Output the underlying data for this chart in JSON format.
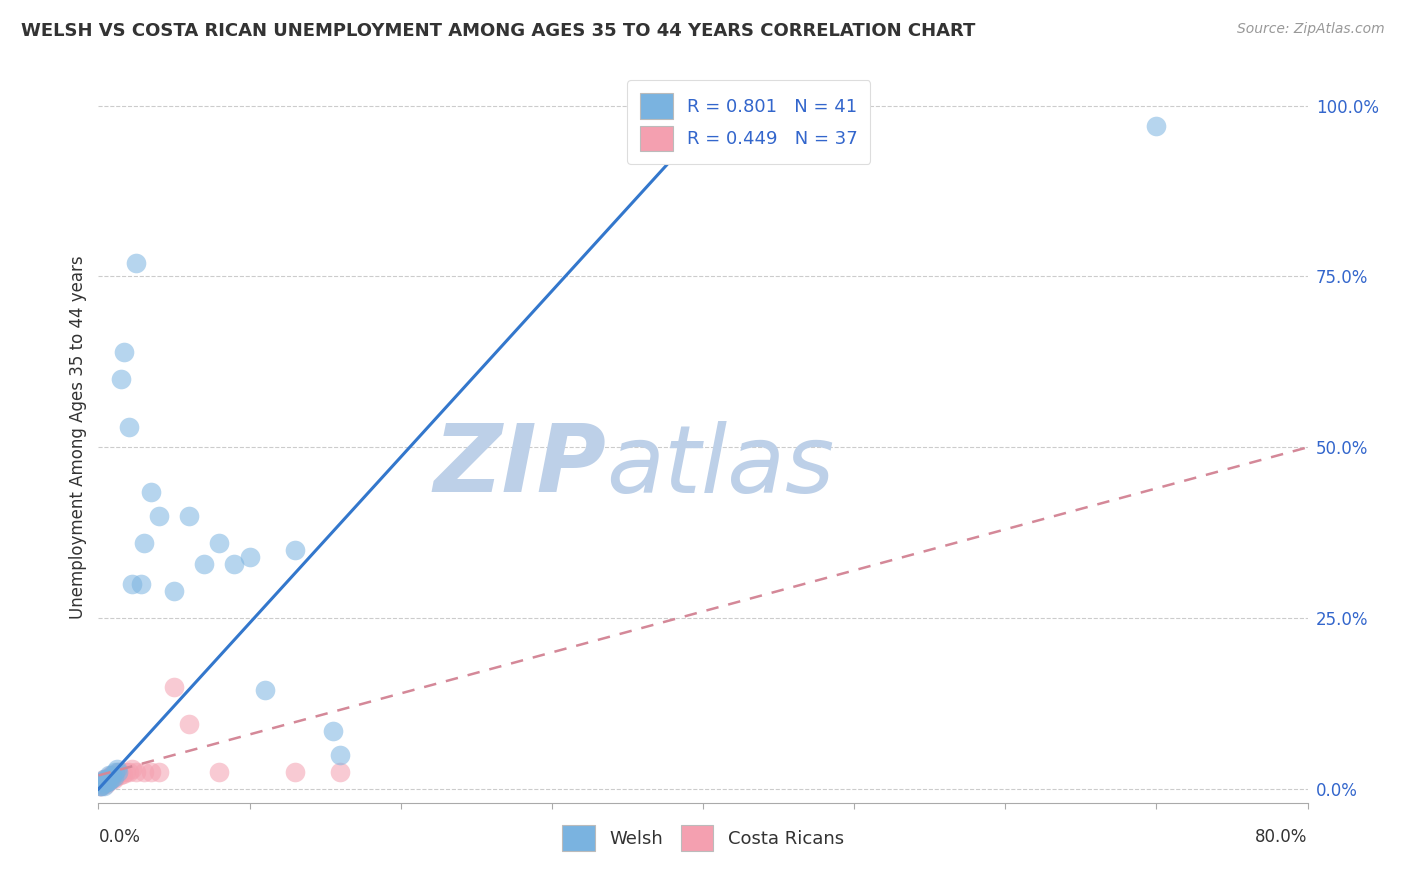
{
  "title": "WELSH VS COSTA RICAN UNEMPLOYMENT AMONG AGES 35 TO 44 YEARS CORRELATION CHART",
  "source": "Source: ZipAtlas.com",
  "ylabel": "Unemployment Among Ages 35 to 44 years",
  "ytick_labels": [
    "0.0%",
    "25.0%",
    "50.0%",
    "75.0%",
    "100.0%"
  ],
  "ytick_values": [
    0,
    0.25,
    0.5,
    0.75,
    1.0
  ],
  "xmin": 0.0,
  "xmax": 0.8,
  "ymin": -0.02,
  "ymax": 1.05,
  "welsh_R": 0.801,
  "welsh_N": 41,
  "costarican_R": 0.449,
  "costarican_N": 37,
  "welsh_color": "#7ab3e0",
  "costarican_color": "#f4a0b0",
  "welsh_line_color": "#3377cc",
  "costarican_line_color": "#d48898",
  "legend_text_color": "#3366cc",
  "watermark_zip_color": "#bdd0e8",
  "watermark_atlas_color": "#bdd0e8",
  "welsh_line_x": [
    0.0,
    0.42
  ],
  "welsh_line_y": [
    0.0,
    1.02
  ],
  "costarican_line_x": [
    0.0,
    0.8
  ],
  "costarican_line_y": [
    0.02,
    0.5
  ],
  "welsh_x": [
    0.001,
    0.002,
    0.002,
    0.003,
    0.003,
    0.004,
    0.004,
    0.005,
    0.005,
    0.006,
    0.006,
    0.007,
    0.007,
    0.008,
    0.009,
    0.01,
    0.011,
    0.012,
    0.013,
    0.015,
    0.017,
    0.02,
    0.022,
    0.025,
    0.028,
    0.03,
    0.035,
    0.04,
    0.05,
    0.06,
    0.07,
    0.08,
    0.09,
    0.1,
    0.11,
    0.13,
    0.155,
    0.16,
    0.37,
    0.39,
    0.7
  ],
  "welsh_y": [
    0.005,
    0.005,
    0.01,
    0.008,
    0.012,
    0.005,
    0.015,
    0.01,
    0.015,
    0.01,
    0.015,
    0.012,
    0.02,
    0.015,
    0.02,
    0.018,
    0.025,
    0.03,
    0.025,
    0.6,
    0.64,
    0.53,
    0.3,
    0.77,
    0.3,
    0.36,
    0.435,
    0.4,
    0.29,
    0.4,
    0.33,
    0.36,
    0.33,
    0.34,
    0.145,
    0.35,
    0.085,
    0.05,
    0.97,
    0.97,
    0.97
  ],
  "costarican_x": [
    0.001,
    0.001,
    0.002,
    0.002,
    0.003,
    0.003,
    0.004,
    0.004,
    0.005,
    0.005,
    0.006,
    0.006,
    0.007,
    0.007,
    0.008,
    0.008,
    0.009,
    0.01,
    0.01,
    0.011,
    0.012,
    0.013,
    0.014,
    0.015,
    0.016,
    0.018,
    0.02,
    0.022,
    0.025,
    0.03,
    0.035,
    0.04,
    0.05,
    0.06,
    0.08,
    0.13,
    0.16
  ],
  "costarican_y": [
    0.005,
    0.008,
    0.005,
    0.01,
    0.008,
    0.012,
    0.01,
    0.015,
    0.008,
    0.012,
    0.01,
    0.015,
    0.012,
    0.018,
    0.015,
    0.02,
    0.018,
    0.015,
    0.02,
    0.018,
    0.02,
    0.025,
    0.02,
    0.025,
    0.022,
    0.025,
    0.025,
    0.03,
    0.025,
    0.025,
    0.025,
    0.025,
    0.15,
    0.095,
    0.025,
    0.025,
    0.025
  ]
}
